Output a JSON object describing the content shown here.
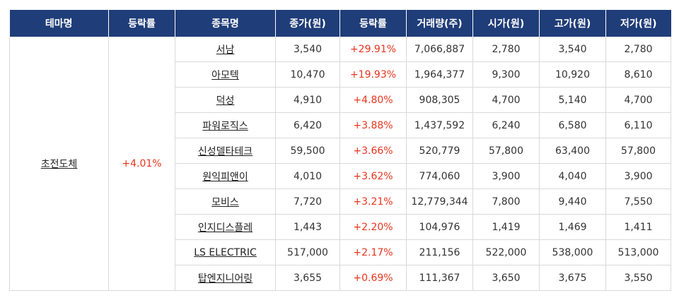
{
  "columns": [
    "테마명",
    "등락률",
    "종목명",
    "종가(원)",
    "등락률",
    "거래량(주)",
    "시가(원)",
    "고가(원)",
    "저가(원)"
  ],
  "theme": {
    "name": "초전도체",
    "rate": "+4.01%"
  },
  "colors": {
    "header_bg": "#1f3d78",
    "up": "#e8341c"
  },
  "rows": [
    {
      "name": "서남",
      "close": "3,540",
      "rate": "+29.91%",
      "volume": "7,066,887",
      "open": "2,780",
      "high": "3,540",
      "low": "2,780"
    },
    {
      "name": "아모텍",
      "close": "10,470",
      "rate": "+19.93%",
      "volume": "1,964,377",
      "open": "9,300",
      "high": "10,920",
      "low": "8,610"
    },
    {
      "name": "덕성",
      "close": "4,910",
      "rate": "+4.80%",
      "volume": "908,305",
      "open": "4,700",
      "high": "5,140",
      "low": "4,700"
    },
    {
      "name": "파워로직스",
      "close": "6,420",
      "rate": "+3.88%",
      "volume": "1,437,592",
      "open": "6,240",
      "high": "6,580",
      "low": "6,110"
    },
    {
      "name": "신성델타테크",
      "close": "59,500",
      "rate": "+3.66%",
      "volume": "520,779",
      "open": "57,800",
      "high": "63,400",
      "low": "57,800"
    },
    {
      "name": "원익피앤이",
      "close": "4,010",
      "rate": "+3.62%",
      "volume": "774,060",
      "open": "3,900",
      "high": "4,040",
      "low": "3,900"
    },
    {
      "name": "모비스",
      "close": "7,720",
      "rate": "+3.21%",
      "volume": "12,779,344",
      "open": "7,800",
      "high": "9,440",
      "low": "7,550"
    },
    {
      "name": "인지디스플레",
      "close": "1,443",
      "rate": "+2.20%",
      "volume": "104,976",
      "open": "1,419",
      "high": "1,469",
      "low": "1,411"
    },
    {
      "name": "LS ELECTRIC",
      "close": "517,000",
      "rate": "+2.17%",
      "volume": "211,156",
      "open": "522,000",
      "high": "538,000",
      "low": "513,000"
    },
    {
      "name": "탑엔지니어링",
      "close": "3,655",
      "rate": "+0.69%",
      "volume": "111,367",
      "open": "3,650",
      "high": "3,675",
      "low": "3,550"
    }
  ]
}
